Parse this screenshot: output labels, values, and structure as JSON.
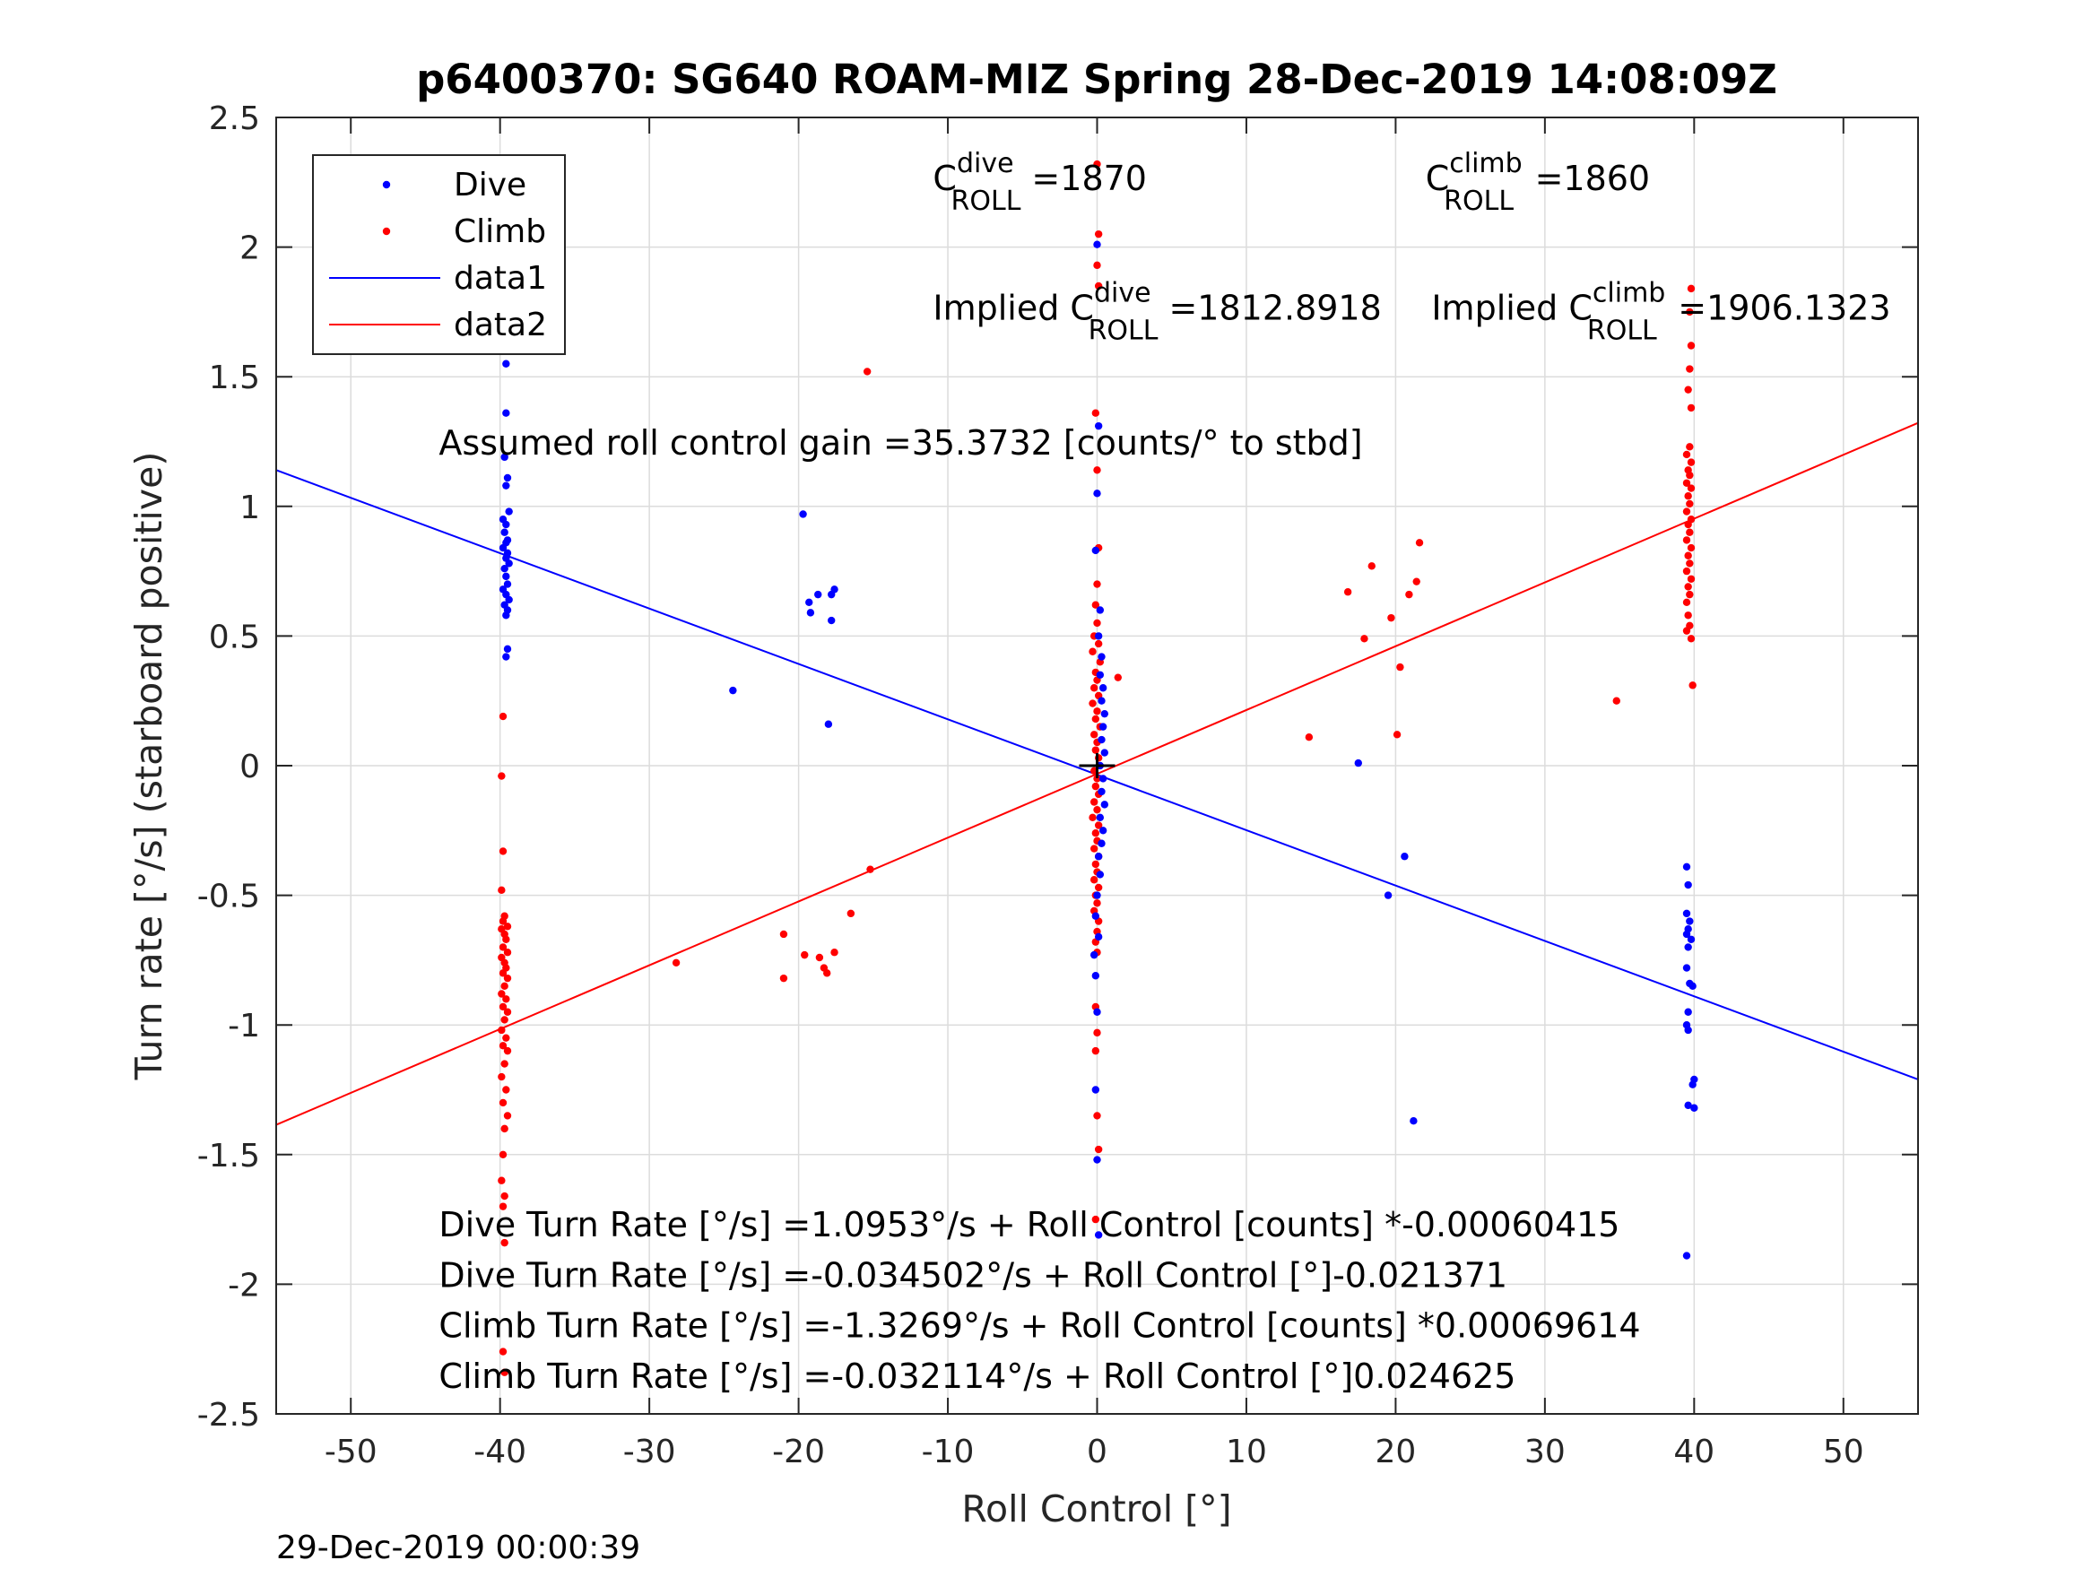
{
  "chart_data": {
    "type": "scatter",
    "title": "p6400370: SG640 ROAM-MIZ Spring 28-Dec-2019 14:08:09Z",
    "xlabel": "Roll Control [°]",
    "ylabel": "Turn rate [°/s] (starboard positive)",
    "xlim": [
      -55,
      55
    ],
    "ylim": [
      -2.5,
      2.5
    ],
    "xticks": [
      "-50",
      "-40",
      "-30",
      "-20",
      "-10",
      "0",
      "10",
      "20",
      "30",
      "40",
      "50"
    ],
    "yticks": [
      "2.5",
      "2",
      "1.5",
      "1",
      "0.5",
      "0",
      "-0.5",
      "-1",
      "-1.5",
      "-2",
      "-2.5"
    ],
    "grid": true,
    "legend_position": "top-left",
    "legend": [
      "Dive",
      "Climb",
      "data1",
      "data2"
    ],
    "colors": {
      "dive": "#0000ff",
      "climb": "#ff0000",
      "fit_dive": "#0000ff",
      "fit_climb": "#ff0000"
    },
    "series": [
      {
        "name": "Dive",
        "mode": "markers",
        "points": [
          [
            -39.6,
            1.55
          ],
          [
            -39.6,
            1.36
          ],
          [
            -39.7,
            1.19
          ],
          [
            -39.5,
            1.11
          ],
          [
            -39.6,
            1.08
          ],
          [
            -39.4,
            0.98
          ],
          [
            -39.8,
            0.95
          ],
          [
            -39.6,
            0.93
          ],
          [
            -39.7,
            0.9
          ],
          [
            -39.5,
            0.87
          ],
          [
            -39.6,
            0.86
          ],
          [
            -39.8,
            0.84
          ],
          [
            -39.5,
            0.82
          ],
          [
            -39.6,
            0.8
          ],
          [
            -39.4,
            0.78
          ],
          [
            -39.7,
            0.76
          ],
          [
            -39.6,
            0.73
          ],
          [
            -39.5,
            0.7
          ],
          [
            -39.8,
            0.68
          ],
          [
            -39.6,
            0.66
          ],
          [
            -39.4,
            0.64
          ],
          [
            -39.7,
            0.62
          ],
          [
            -39.5,
            0.6
          ],
          [
            -39.6,
            0.58
          ],
          [
            -39.5,
            0.45
          ],
          [
            -39.6,
            0.42
          ],
          [
            -24.4,
            0.29
          ],
          [
            -19.7,
            0.97
          ],
          [
            -19.3,
            0.63
          ],
          [
            -19.2,
            0.59
          ],
          [
            -18.7,
            0.66
          ],
          [
            -17.8,
            0.66
          ],
          [
            -17.6,
            0.68
          ],
          [
            -17.8,
            0.56
          ],
          [
            -18.0,
            0.16
          ],
          [
            0.0,
            2.01
          ],
          [
            0.1,
            1.31
          ],
          [
            0.0,
            1.05
          ],
          [
            -0.1,
            0.83
          ],
          [
            0.2,
            0.6
          ],
          [
            0.1,
            0.5
          ],
          [
            0.3,
            0.42
          ],
          [
            0.2,
            0.35
          ],
          [
            0.4,
            0.3
          ],
          [
            0.3,
            0.25
          ],
          [
            0.5,
            0.2
          ],
          [
            0.4,
            0.15
          ],
          [
            0.3,
            0.1
          ],
          [
            0.5,
            0.05
          ],
          [
            0.2,
            0.0
          ],
          [
            0.4,
            -0.05
          ],
          [
            0.3,
            -0.1
          ],
          [
            0.5,
            -0.15
          ],
          [
            0.2,
            -0.2
          ],
          [
            0.4,
            -0.25
          ],
          [
            0.3,
            -0.3
          ],
          [
            0.1,
            -0.35
          ],
          [
            0.2,
            -0.42
          ],
          [
            0.0,
            -0.5
          ],
          [
            -0.1,
            -0.58
          ],
          [
            0.1,
            -0.66
          ],
          [
            -0.2,
            -0.73
          ],
          [
            -0.1,
            -0.81
          ],
          [
            0.0,
            -0.95
          ],
          [
            -0.1,
            -1.25
          ],
          [
            0.0,
            -1.52
          ],
          [
            0.1,
            -1.81
          ],
          [
            17.5,
            0.01
          ],
          [
            20.6,
            -0.35
          ],
          [
            19.5,
            -0.5
          ],
          [
            21.2,
            -1.37
          ],
          [
            39.5,
            -0.39
          ],
          [
            39.6,
            -0.46
          ],
          [
            39.5,
            -0.57
          ],
          [
            39.7,
            -0.6
          ],
          [
            39.6,
            -0.63
          ],
          [
            39.5,
            -0.65
          ],
          [
            39.8,
            -0.67
          ],
          [
            39.6,
            -0.7
          ],
          [
            39.5,
            -0.78
          ],
          [
            39.7,
            -0.84
          ],
          [
            39.9,
            -0.85
          ],
          [
            39.6,
            -0.95
          ],
          [
            39.5,
            -1.0
          ],
          [
            39.6,
            -1.02
          ],
          [
            40.0,
            -1.21
          ],
          [
            39.9,
            -1.23
          ],
          [
            39.6,
            -1.31
          ],
          [
            40.0,
            -1.32
          ],
          [
            39.5,
            -1.89
          ]
        ]
      },
      {
        "name": "Climb",
        "mode": "markers",
        "points": [
          [
            -39.8,
            0.19
          ],
          [
            -39.9,
            -0.04
          ],
          [
            -39.8,
            -0.33
          ],
          [
            -39.9,
            -0.48
          ],
          [
            -39.7,
            -0.58
          ],
          [
            -39.8,
            -0.6
          ],
          [
            -39.5,
            -0.62
          ],
          [
            -39.9,
            -0.63
          ],
          [
            -39.7,
            -0.65
          ],
          [
            -39.6,
            -0.67
          ],
          [
            -39.8,
            -0.7
          ],
          [
            -39.5,
            -0.72
          ],
          [
            -39.9,
            -0.74
          ],
          [
            -39.7,
            -0.76
          ],
          [
            -39.6,
            -0.78
          ],
          [
            -39.8,
            -0.8
          ],
          [
            -39.5,
            -0.82
          ],
          [
            -39.7,
            -0.85
          ],
          [
            -39.9,
            -0.88
          ],
          [
            -39.6,
            -0.9
          ],
          [
            -39.8,
            -0.93
          ],
          [
            -39.5,
            -0.95
          ],
          [
            -39.7,
            -0.98
          ],
          [
            -39.9,
            -1.02
          ],
          [
            -39.6,
            -1.05
          ],
          [
            -39.8,
            -1.08
          ],
          [
            -39.5,
            -1.1
          ],
          [
            -39.7,
            -1.15
          ],
          [
            -39.9,
            -1.2
          ],
          [
            -39.6,
            -1.25
          ],
          [
            -39.8,
            -1.3
          ],
          [
            -39.5,
            -1.35
          ],
          [
            -39.7,
            -1.4
          ],
          [
            -39.8,
            -1.5
          ],
          [
            -39.9,
            -1.6
          ],
          [
            -39.7,
            -1.66
          ],
          [
            -39.8,
            -1.7
          ],
          [
            -39.7,
            -1.84
          ],
          [
            -39.8,
            -2.26
          ],
          [
            -39.7,
            -2.34
          ],
          [
            -28.2,
            -0.76
          ],
          [
            -21.0,
            -0.65
          ],
          [
            -21.0,
            -0.82
          ],
          [
            -19.6,
            -0.73
          ],
          [
            -18.6,
            -0.74
          ],
          [
            -18.3,
            -0.78
          ],
          [
            -18.1,
            -0.8
          ],
          [
            -17.6,
            -0.72
          ],
          [
            -16.5,
            -0.57
          ],
          [
            -15.2,
            -0.4
          ],
          [
            -15.4,
            1.52
          ],
          [
            0.0,
            2.32
          ],
          [
            0.1,
            2.05
          ],
          [
            0.0,
            1.93
          ],
          [
            0.1,
            1.85
          ],
          [
            -0.1,
            1.36
          ],
          [
            0.0,
            1.14
          ],
          [
            0.1,
            0.84
          ],
          [
            0.0,
            0.7
          ],
          [
            -0.1,
            0.62
          ],
          [
            0.0,
            0.55
          ],
          [
            -0.2,
            0.5
          ],
          [
            0.1,
            0.47
          ],
          [
            -0.3,
            0.44
          ],
          [
            0.2,
            0.4
          ],
          [
            -0.1,
            0.36
          ],
          [
            0.0,
            0.33
          ],
          [
            -0.2,
            0.3
          ],
          [
            0.1,
            0.27
          ],
          [
            -0.3,
            0.24
          ],
          [
            0.0,
            0.21
          ],
          [
            -0.1,
            0.18
          ],
          [
            0.2,
            0.15
          ],
          [
            -0.2,
            0.12
          ],
          [
            0.0,
            0.09
          ],
          [
            -0.1,
            0.06
          ],
          [
            0.1,
            0.03
          ],
          [
            -0.2,
            -0.02
          ],
          [
            0.0,
            -0.05
          ],
          [
            -0.1,
            -0.08
          ],
          [
            0.1,
            -0.11
          ],
          [
            -0.2,
            -0.14
          ],
          [
            0.0,
            -0.17
          ],
          [
            -0.3,
            -0.2
          ],
          [
            0.1,
            -0.23
          ],
          [
            -0.1,
            -0.26
          ],
          [
            0.0,
            -0.29
          ],
          [
            -0.2,
            -0.32
          ],
          [
            0.1,
            -0.35
          ],
          [
            -0.1,
            -0.38
          ],
          [
            0.0,
            -0.41
          ],
          [
            -0.2,
            -0.44
          ],
          [
            0.1,
            -0.47
          ],
          [
            -0.1,
            -0.5
          ],
          [
            0.0,
            -0.53
          ],
          [
            -0.2,
            -0.56
          ],
          [
            0.1,
            -0.6
          ],
          [
            0.0,
            -0.64
          ],
          [
            -0.1,
            -0.68
          ],
          [
            0.0,
            -0.72
          ],
          [
            -0.1,
            -0.93
          ],
          [
            0.0,
            -1.03
          ],
          [
            -0.1,
            -1.1
          ],
          [
            0.0,
            -1.35
          ],
          [
            0.1,
            -1.48
          ],
          [
            -0.1,
            -1.75
          ],
          [
            1.4,
            0.34
          ],
          [
            14.2,
            0.11
          ],
          [
            16.8,
            0.67
          ],
          [
            17.9,
            0.49
          ],
          [
            18.4,
            0.77
          ],
          [
            19.7,
            0.57
          ],
          [
            20.1,
            0.12
          ],
          [
            20.3,
            0.38
          ],
          [
            20.9,
            0.66
          ],
          [
            21.4,
            0.71
          ],
          [
            21.6,
            0.86
          ],
          [
            34.8,
            0.25
          ],
          [
            39.8,
            1.84
          ],
          [
            39.7,
            1.75
          ],
          [
            39.8,
            1.62
          ],
          [
            39.7,
            1.53
          ],
          [
            39.6,
            1.45
          ],
          [
            39.8,
            1.38
          ],
          [
            39.7,
            1.23
          ],
          [
            39.5,
            1.2
          ],
          [
            39.8,
            1.17
          ],
          [
            39.6,
            1.14
          ],
          [
            39.7,
            1.12
          ],
          [
            39.5,
            1.09
          ],
          [
            39.8,
            1.07
          ],
          [
            39.6,
            1.04
          ],
          [
            39.7,
            1.01
          ],
          [
            39.5,
            0.98
          ],
          [
            39.8,
            0.95
          ],
          [
            39.6,
            0.93
          ],
          [
            39.7,
            0.9
          ],
          [
            39.5,
            0.87
          ],
          [
            39.8,
            0.84
          ],
          [
            39.6,
            0.81
          ],
          [
            39.7,
            0.78
          ],
          [
            39.5,
            0.75
          ],
          [
            39.8,
            0.72
          ],
          [
            39.6,
            0.69
          ],
          [
            39.7,
            0.66
          ],
          [
            39.5,
            0.63
          ],
          [
            39.6,
            0.58
          ],
          [
            39.7,
            0.54
          ],
          [
            39.5,
            0.52
          ],
          [
            39.8,
            0.49
          ],
          [
            39.9,
            0.31
          ]
        ]
      },
      {
        "name": "data1",
        "mode": "line",
        "points": [
          [
            -55,
            1.14
          ],
          [
            55,
            -1.21
          ]
        ]
      },
      {
        "name": "data2",
        "mode": "line",
        "points": [
          [
            -55,
            -1.385
          ],
          [
            55,
            1.322
          ]
        ]
      }
    ],
    "center_marker": {
      "x": 0,
      "y": 0
    },
    "annotations": [
      {
        "id": "c-dive",
        "base": "C",
        "sup": "dive",
        "sub": "ROLL",
        "value": "=1870",
        "x": -11.0,
        "y": 2.22
      },
      {
        "id": "c-climb",
        "base": "C",
        "sup": "climb",
        "sub": "ROLL",
        "value": "=1860",
        "x": 22.0,
        "y": 2.22
      },
      {
        "id": "implied-dive",
        "base": "Implied C",
        "sup": "dive",
        "sub": "ROLL",
        "value": "=1812.8918",
        "x": -11.0,
        "y": 1.72
      },
      {
        "id": "implied-climb",
        "base": "Implied C",
        "sup": "climb",
        "sub": "ROLL",
        "value": "=1906.1323",
        "x": 22.4,
        "y": 1.72
      }
    ],
    "text_lines": [
      {
        "id": "gain",
        "text": "Assumed roll control gain =35.3732 [counts/° to stbd]",
        "x": -44.1,
        "y": 1.2
      },
      {
        "id": "dive-counts",
        "text": "Dive Turn Rate [°/s] =1.0953°/s + Roll Control [counts] *-0.00060415",
        "x": -44.1,
        "y": -1.815
      },
      {
        "id": "dive-deg",
        "text": "Dive Turn Rate [°/s] =-0.034502°/s + Roll Control [°]-0.021371",
        "x": -44.1,
        "y": -2.01
      },
      {
        "id": "climb-counts",
        "text": "Climb Turn Rate [°/s] =-1.3269°/s + Roll Control [counts] *0.00069614",
        "x": -44.1,
        "y": -2.205
      },
      {
        "id": "climb-deg",
        "text": "Climb Turn Rate [°/s] =-0.032114°/s + Roll Control [°]0.024625",
        "x": -44.1,
        "y": -2.4
      }
    ]
  },
  "timestamp": "29-Dec-2019 00:00:39"
}
